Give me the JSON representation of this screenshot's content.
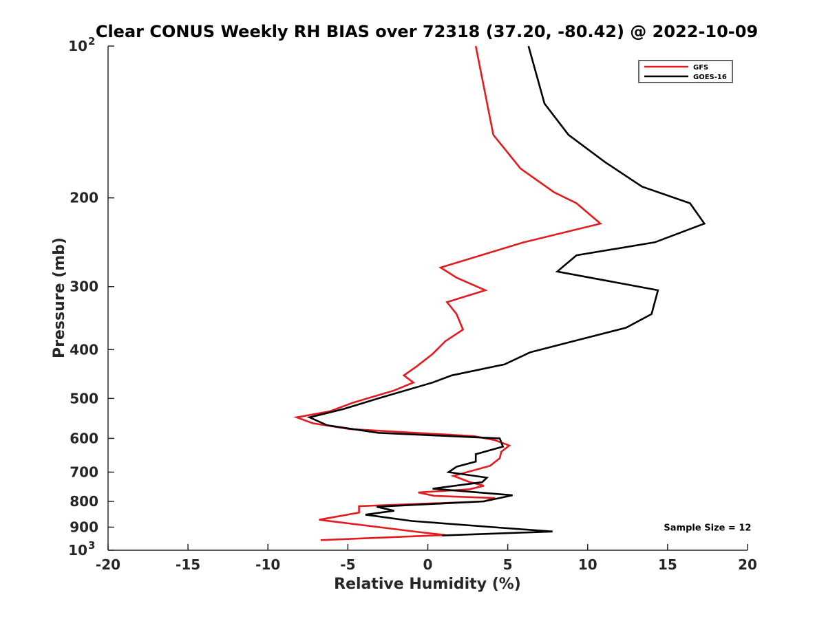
{
  "chart_data": {
    "type": "line",
    "title": "Clear CONUS Weekly RH BIAS over 72318 (37.20, -80.42) @ 2022-10-09",
    "xlabel": "Relative Humidity (%)",
    "ylabel": "Pressure (mb)",
    "xlim": [
      -20,
      20
    ],
    "ylim": [
      100,
      1000
    ],
    "y_scale": "log",
    "y_reversed": true,
    "grid": false,
    "x_ticks": [
      -20,
      -15,
      -10,
      -5,
      0,
      5,
      10,
      15,
      20
    ],
    "x_tick_labels": [
      "-20",
      "-15",
      "-10",
      "-5",
      "0",
      "5",
      "10",
      "15",
      "20"
    ],
    "y_ticks": [
      100,
      200,
      300,
      400,
      500,
      600,
      700,
      800,
      900,
      1000
    ],
    "y_tick_labels": [
      {
        "base": "10",
        "exp": "2"
      },
      {
        "base": "200",
        "exp": ""
      },
      {
        "base": "300",
        "exp": ""
      },
      {
        "base": "400",
        "exp": ""
      },
      {
        "base": "500",
        "exp": ""
      },
      {
        "base": "600",
        "exp": ""
      },
      {
        "base": "700",
        "exp": ""
      },
      {
        "base": "800",
        "exp": ""
      },
      {
        "base": "900",
        "exp": ""
      },
      {
        "base": "10",
        "exp": "3"
      }
    ],
    "legend_position": "top-right",
    "series": [
      {
        "name": "GFS",
        "color": "#e41a1c",
        "points": [
          [
            3.0,
            100
          ],
          [
            4.1,
            150
          ],
          [
            5.8,
            175
          ],
          [
            7.9,
            195
          ],
          [
            9.3,
            205
          ],
          [
            10.8,
            225
          ],
          [
            6.0,
            245
          ],
          [
            0.8,
            275
          ],
          [
            1.8,
            288
          ],
          [
            3.6,
            305
          ],
          [
            1.2,
            322
          ],
          [
            1.8,
            340
          ],
          [
            2.2,
            365
          ],
          [
            1.1,
            385
          ],
          [
            0.3,
            408
          ],
          [
            -0.7,
            432
          ],
          [
            -1.5,
            450
          ],
          [
            -0.9,
            465
          ],
          [
            -2.1,
            482
          ],
          [
            -4.7,
            510
          ],
          [
            -6.1,
            530
          ],
          [
            -8.2,
            545
          ],
          [
            -7.2,
            560
          ],
          [
            -4.9,
            575
          ],
          [
            2.9,
            594
          ],
          [
            4.2,
            605
          ],
          [
            5.1,
            620
          ],
          [
            4.6,
            638
          ],
          [
            4.5,
            657
          ],
          [
            3.9,
            680
          ],
          [
            1.6,
            712
          ],
          [
            2.6,
            732
          ],
          [
            3.5,
            745
          ],
          [
            2.6,
            757
          ],
          [
            -0.6,
            768
          ],
          [
            0.4,
            780
          ],
          [
            4.2,
            788
          ],
          [
            3.5,
            800
          ],
          [
            -4.3,
            818
          ],
          [
            -4.3,
            842
          ],
          [
            -6.8,
            870
          ],
          [
            -0.6,
            920
          ],
          [
            1.1,
            933
          ],
          [
            -6.7,
            955
          ]
        ]
      },
      {
        "name": "GOES-16",
        "color": "#000000",
        "points": [
          [
            6.3,
            100
          ],
          [
            7.3,
            130
          ],
          [
            8.8,
            150
          ],
          [
            11.1,
            170
          ],
          [
            13.4,
            190
          ],
          [
            16.4,
            205
          ],
          [
            17.3,
            225
          ],
          [
            14.2,
            245
          ],
          [
            9.3,
            260
          ],
          [
            8.1,
            280
          ],
          [
            14.4,
            305
          ],
          [
            14.0,
            340
          ],
          [
            12.4,
            362
          ],
          [
            9.1,
            385
          ],
          [
            6.4,
            405
          ],
          [
            4.8,
            428
          ],
          [
            1.5,
            450
          ],
          [
            0.3,
            465
          ],
          [
            -3.1,
            500
          ],
          [
            -5.3,
            525
          ],
          [
            -7.4,
            545
          ],
          [
            -6.3,
            565
          ],
          [
            -3.1,
            585
          ],
          [
            4.5,
            600
          ],
          [
            4.7,
            623
          ],
          [
            3.0,
            645
          ],
          [
            3.0,
            667
          ],
          [
            1.8,
            683
          ],
          [
            1.3,
            700
          ],
          [
            3.7,
            718
          ],
          [
            3.4,
            733
          ],
          [
            0.3,
            755
          ],
          [
            5.3,
            778
          ],
          [
            3.5,
            800
          ],
          [
            -3.2,
            820
          ],
          [
            -2.1,
            835
          ],
          [
            -3.9,
            850
          ],
          [
            -1.0,
            875
          ],
          [
            4.1,
            900
          ],
          [
            7.8,
            918
          ],
          [
            0.9,
            935
          ]
        ]
      }
    ],
    "annotations": [
      {
        "text": "Sample Size = 12",
        "x": 17.5,
        "y": 915
      }
    ]
  }
}
